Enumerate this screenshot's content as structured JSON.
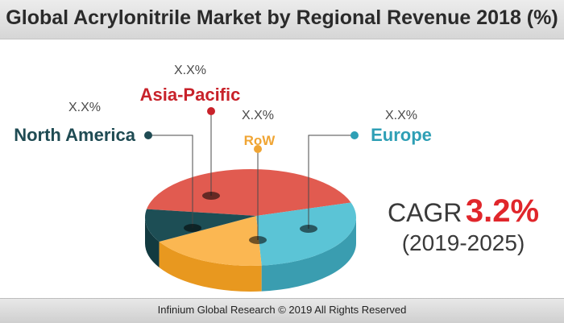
{
  "header": {
    "title": "Global Acrylonitrile Market by Regional Revenue 2018 (%)"
  },
  "cagr": {
    "label": "CAGR",
    "value": "3.2%",
    "period": "(2019-2025)",
    "value_color": "#e0262b"
  },
  "footer": {
    "text": "Infinium Global Research © 2019 All Rights Reserved"
  },
  "chart_data": {
    "type": "pie",
    "title": "Global Acrylonitrile Market by Regional Revenue 2018 (%)",
    "slices": [
      {
        "name": "Asia-Pacific",
        "value_label": "X.X%",
        "color": "#e15b50",
        "side_color": "#b8423a",
        "label_color": "#c8222a"
      },
      {
        "name": "Europe",
        "value_label": "X.X%",
        "color": "#5bc4d6",
        "side_color": "#3a9db0",
        "label_color": "#2e9fb5"
      },
      {
        "name": "RoW",
        "value_label": "X.X%",
        "color": "#fbb752",
        "side_color": "#e8981f",
        "label_color": "#f0a534"
      },
      {
        "name": "North America",
        "value_label": "X.X%",
        "color": "#1d4e55",
        "side_color": "#123a40",
        "label_color": "#1f4b53"
      }
    ],
    "legend": "none"
  }
}
